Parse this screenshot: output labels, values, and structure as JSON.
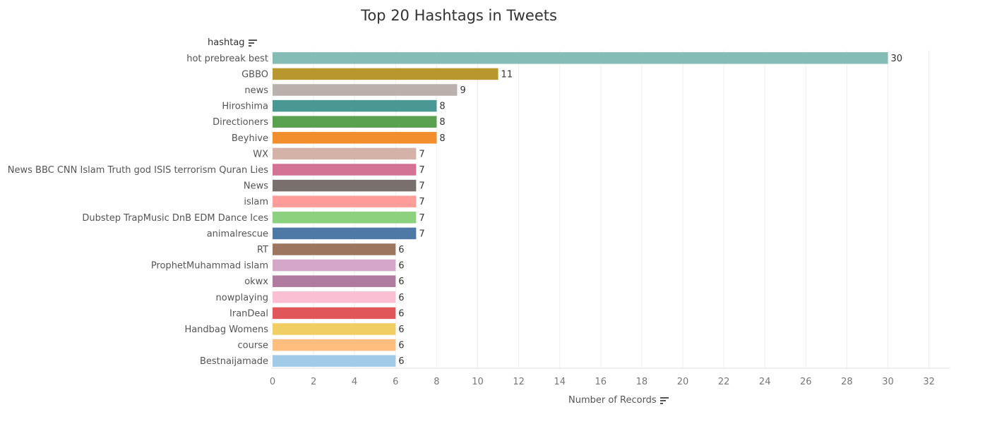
{
  "chart_data": {
    "type": "bar",
    "orientation": "horizontal",
    "title": "Top 20 Hashtags in Tweets",
    "ylabel": "hashtag",
    "xlabel": "Number of Records",
    "xlim": [
      0,
      33
    ],
    "xticks": [
      0,
      2,
      4,
      6,
      8,
      10,
      12,
      14,
      16,
      18,
      20,
      22,
      24,
      26,
      28,
      30,
      32
    ],
    "grid": true,
    "categories": [
      "hot prebreak best",
      "GBBO",
      "news",
      "Hiroshima",
      "Directioners",
      "Beyhive",
      "WX",
      "News BBC CNN Islam Truth god ISIS terrorism Quran Lies",
      "News",
      "islam",
      "Dubstep TrapMusic DnB EDM Dance Ices",
      "animalrescue",
      "RT",
      "ProphetMuhammad islam",
      "okwx",
      "nowplaying",
      "IranDeal",
      "Handbag Womens",
      "course",
      "Bestnaijamade"
    ],
    "values": [
      30,
      11,
      9,
      8,
      8,
      8,
      7,
      7,
      7,
      7,
      7,
      7,
      6,
      6,
      6,
      6,
      6,
      6,
      6,
      6
    ],
    "colors": [
      "#86BCB6",
      "#B9972F",
      "#BAB0AC",
      "#499894",
      "#59A14F",
      "#F28E2B",
      "#D4B2A7",
      "#D37295",
      "#79706E",
      "#FF9D9A",
      "#8CD17D",
      "#4E79A7",
      "#9D7660",
      "#D4A6C8",
      "#B07AA1",
      "#FABFD2",
      "#E15759",
      "#F1CE63",
      "#FFBE7D",
      "#A0CBE8"
    ]
  }
}
